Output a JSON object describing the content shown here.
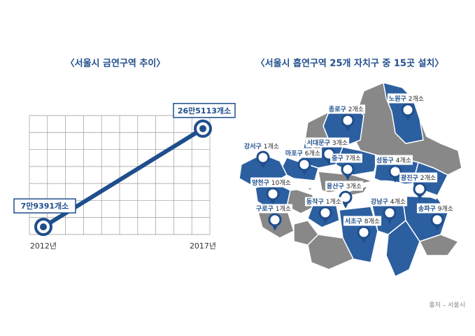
{
  "chart_data": {
    "type": "line",
    "title": "〈서울시 금연구역 추이〉",
    "categories": [
      "2012년",
      "2017년"
    ],
    "values": [
      79391,
      265113
    ],
    "value_labels": [
      "7만9391개소",
      "26만5113개소"
    ],
    "color": "#1f4e8c",
    "ylim": [
      65000,
      290000
    ],
    "grid": true
  },
  "map": {
    "title": "〈서울시 흡연구역 25개 자치구 중 15곳 설치〉",
    "districts": [
      {
        "name": "노원구",
        "label": "2개소"
      },
      {
        "name": "종로구",
        "label": "2개소"
      },
      {
        "name": "강서구",
        "label": "1개소"
      },
      {
        "name": "서대문구",
        "label": "3개소"
      },
      {
        "name": "마포구",
        "label": "6개소"
      },
      {
        "name": "중구",
        "label": "7개소"
      },
      {
        "name": "성동구",
        "label": "4개소"
      },
      {
        "name": "광진구",
        "label": "2개소"
      },
      {
        "name": "양천구",
        "label": "10개소"
      },
      {
        "name": "용산구",
        "label": "3개소"
      },
      {
        "name": "동작구",
        "label": "1개소"
      },
      {
        "name": "강남구",
        "label": "4개소"
      },
      {
        "name": "구로구",
        "label": "1개소"
      },
      {
        "name": "송파구",
        "label": "9개소"
      },
      {
        "name": "서초구",
        "label": "8개소"
      }
    ]
  },
  "source": "출처 – 서울시"
}
